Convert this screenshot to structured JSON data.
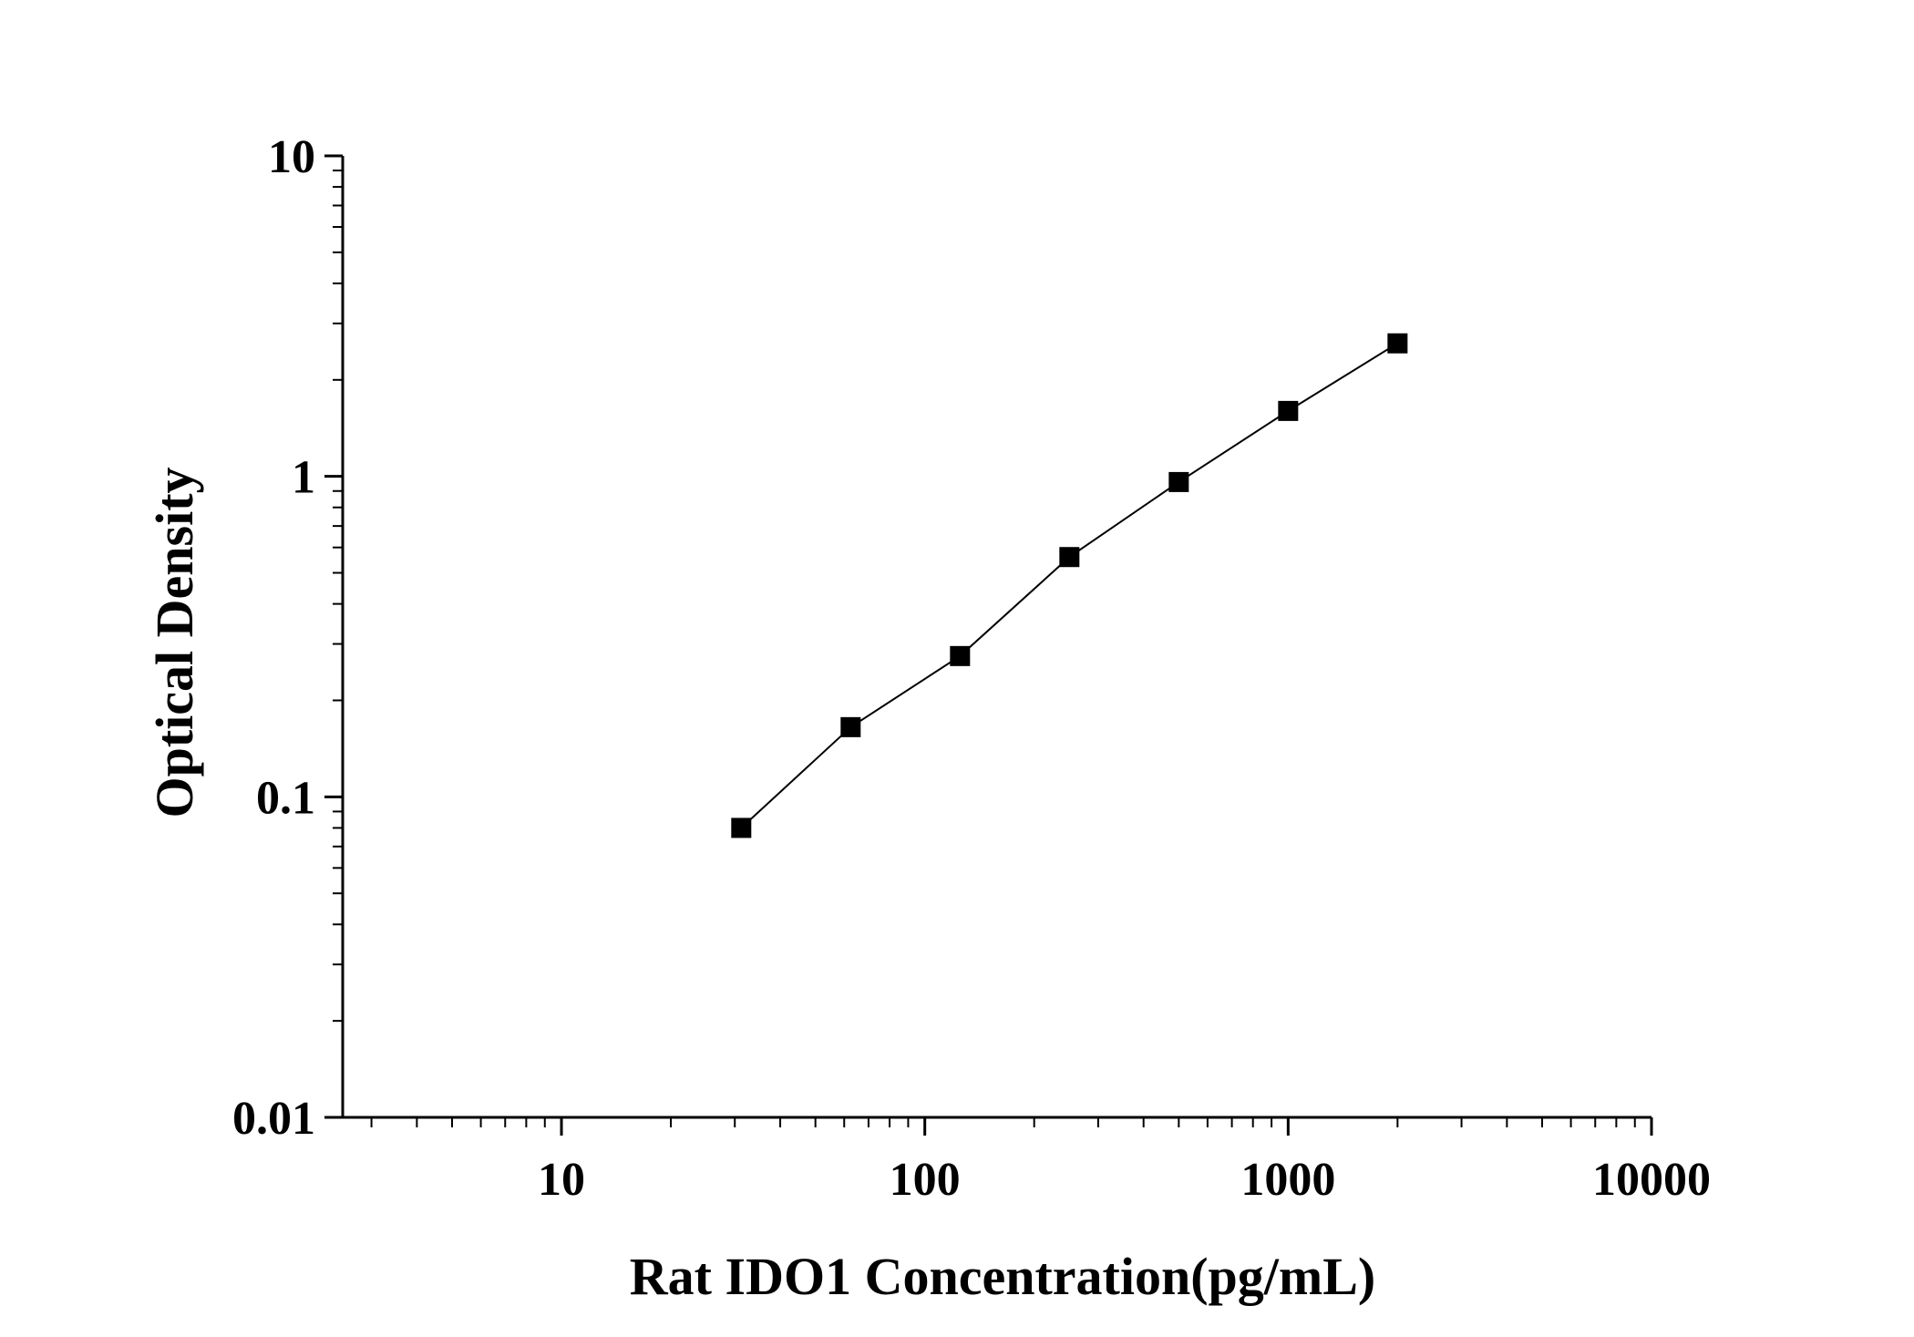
{
  "chart_data": {
    "type": "scatter",
    "title": "",
    "xlabel": "Rat IDO1 Concentration(pg/mL)",
    "ylabel": "Optical Density",
    "x_scale": "log",
    "y_scale": "log",
    "xlim": [
      2.5,
      10000
    ],
    "ylim": [
      0.01,
      10
    ],
    "x_ticks": [
      {
        "value": 10,
        "label": "10"
      },
      {
        "value": 100,
        "label": "100"
      },
      {
        "value": 1000,
        "label": "1000"
      },
      {
        "value": 10000,
        "label": "10000"
      }
    ],
    "y_ticks": [
      {
        "value": 0.01,
        "label": "0.01"
      },
      {
        "value": 0.1,
        "label": "0.1"
      },
      {
        "value": 1,
        "label": "1"
      },
      {
        "value": 10,
        "label": "10"
      }
    ],
    "grid": false,
    "legend": "none",
    "series": [
      {
        "x": [
          31.25,
          62.5,
          125,
          250,
          500,
          1000,
          2000
        ],
        "y": [
          0.08,
          0.165,
          0.275,
          0.56,
          0.96,
          1.6,
          2.6
        ],
        "marker": "square",
        "fit_line": true
      }
    ],
    "colors": {
      "series": "#000000",
      "axis": "#000000",
      "background": "#ffffff"
    }
  }
}
